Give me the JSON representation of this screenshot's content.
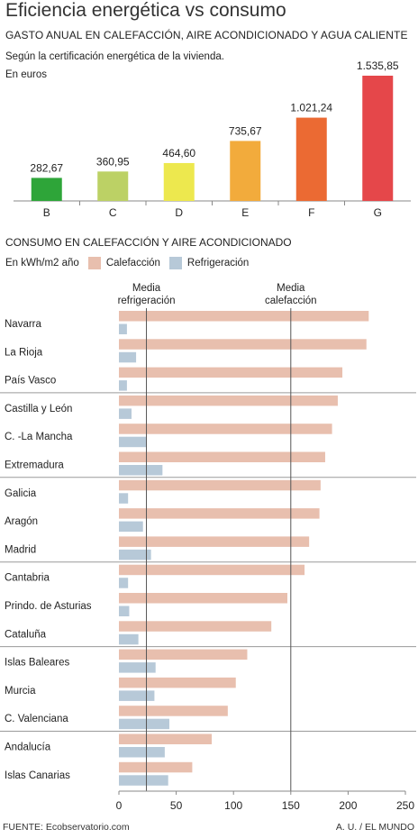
{
  "title": "Eficiencia energética vs consumo",
  "chart1": {
    "subtitle": "GASTO ANUAL EN CALEFACCIÓN, AIRE ACONDICIONADO Y AGUA CALIENTE",
    "note1": "Según la certificación energética de la vivienda.",
    "note2": "En euros"
  },
  "chart2": {
    "subtitle": "CONSUMO EN CALEFACCIÓN Y AIRE ACONDICIONADO",
    "units": "En kWh/m2 año",
    "legend_heating": "Calefacción",
    "legend_cooling": "Refrigeración",
    "media_refrigeracion": [
      "Media",
      "refrigeración"
    ],
    "media_calefaccion": [
      "Media",
      "calefacción"
    ]
  },
  "footer": {
    "source": "FUENTE: Ecobservatorio.com",
    "credit": "A. U. / EL MUNDO"
  },
  "colors": {
    "heating": "#e8bfae",
    "cooling": "#b7c9d8",
    "gridline": "#aaaaaa",
    "separator": "#9a9a9a",
    "axis": "#888888"
  },
  "chart_data": [
    {
      "type": "bar",
      "title": "GASTO ANUAL EN CALEFACCIÓN, AIRE ACONDICIONADO Y AGUA CALIENTE",
      "ylabel": "En euros",
      "categories": [
        "B",
        "C",
        "D",
        "E",
        "F",
        "G"
      ],
      "values": [
        282.67,
        360.95,
        464.6,
        735.67,
        1021.24,
        1535.85
      ],
      "value_labels": [
        "282,67",
        "360,95",
        "464,60",
        "735,67",
        "1.021,24",
        "1.535,85"
      ],
      "colors": [
        "#2ea539",
        "#bcd165",
        "#ede84e",
        "#f2ab3c",
        "#eb6a33",
        "#e5474a"
      ],
      "ylim": [
        0,
        1535.85
      ]
    },
    {
      "type": "bar",
      "orientation": "horizontal",
      "title": "CONSUMO EN CALEFACCIÓN Y AIRE ACONDICIONADO",
      "xlabel": "En kWh/m2 año",
      "categories": [
        "Navarra",
        "La Rioja",
        "País Vasco",
        "Castilla y León",
        "C. -La Mancha",
        "Extremadura",
        "Galicia",
        "Aragón",
        "Madrid",
        "Cantabria",
        "Prindo. de Asturias",
        "Cataluña",
        "Islas Baleares",
        "Murcia",
        "C. Valenciana",
        "Andalucía",
        "Islas Canarias"
      ],
      "series": [
        {
          "name": "Calefacción",
          "values": [
            218,
            216,
            195,
            191,
            186,
            180,
            176,
            175,
            166,
            162,
            147,
            133,
            112,
            102,
            95,
            81,
            64
          ]
        },
        {
          "name": "Refrigeración",
          "values": [
            7,
            15,
            7,
            11,
            24,
            38,
            8,
            21,
            28,
            8,
            9,
            17,
            32,
            31,
            44,
            40,
            43
          ]
        }
      ],
      "reference_lines": [
        {
          "label": "Media refrigeración",
          "value": 24
        },
        {
          "label": "Media calefacción",
          "value": 150
        }
      ],
      "group_separators_after": [
        "País Vasco",
        "Extremadura",
        "Madrid",
        "Cataluña",
        "C. Valenciana"
      ],
      "xticks": [
        0,
        50,
        100,
        150,
        200,
        250
      ],
      "xlim": [
        0,
        250
      ],
      "grid": false,
      "legend": "top-left"
    }
  ]
}
